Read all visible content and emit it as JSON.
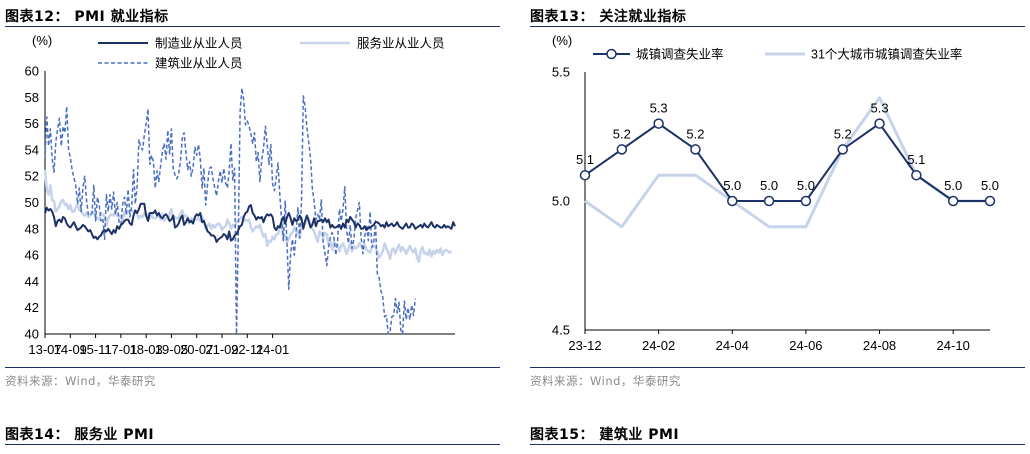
{
  "panels": {
    "p12": {
      "title": "图表12： PMI 就业指标",
      "source": "资料来源：Wind，华泰研究"
    },
    "p13": {
      "title": "图表13： 关注就业指标",
      "source": "资料来源：Wind，华泰研究"
    },
    "p14": {
      "title": "图表14： 服务业 PMI"
    },
    "p15": {
      "title": "图表15： 建筑业 PMI"
    }
  },
  "colors": {
    "navy": "#1c3166",
    "light": "#c7d3ea",
    "dashed": "#4a6fc0",
    "rule": "#1c3166"
  },
  "chart_data": [
    {
      "type": "line",
      "unit_label": "(%)",
      "ylim": [
        40,
        60
      ],
      "yticks": [
        40,
        42,
        44,
        46,
        48,
        50,
        52,
        54,
        56,
        58,
        60
      ],
      "x_start": "2013-07",
      "x_end": "2024-07",
      "xtick_labels": [
        "13-07",
        "14-09",
        "15-11",
        "17-01",
        "18-03",
        "19-05",
        "20-07",
        "21-09",
        "22-11",
        "24-01"
      ],
      "legend": "top",
      "series": [
        {
          "name": "制造业从业人员",
          "style": "solid",
          "values": [
            49.2,
            49.6,
            49.4,
            49.5,
            49.3,
            48.9,
            48.2,
            48.6,
            48.7,
            48.5,
            48.9,
            48.8,
            48.4,
            48.2,
            48.1,
            48.3,
            48.5,
            48.2,
            47.9,
            48.0,
            48.1,
            48.3,
            48.2,
            48.0,
            47.8,
            47.9,
            47.6,
            47.3,
            47.4,
            47.2,
            47.4,
            47.5,
            47.8,
            47.9,
            47.8,
            48.0,
            47.8,
            47.6,
            47.9,
            47.7,
            48.2,
            48.0,
            48.3,
            48.4,
            48.6,
            48.7,
            48.7,
            48.4,
            48.3,
            49.0,
            49.4,
            49.2,
            49.5,
            49.9,
            49.9,
            49.9,
            49.0,
            48.6,
            49.2,
            49.2,
            49.2,
            49.4,
            49.0,
            49.2,
            48.9,
            48.8,
            49.0,
            49.1,
            48.9,
            48.6,
            48.7,
            49.0,
            48.1,
            48.2,
            48.4,
            48.8,
            49.0,
            48.3,
            48.5,
            48.8,
            48.5,
            48.6,
            48.4,
            48.9,
            49.1,
            49.0,
            49.2,
            48.5,
            48.6,
            48.2,
            47.8,
            47.7,
            47.5,
            47.5,
            47.4,
            47.0,
            47.2,
            47.3,
            47.4,
            47.6,
            47.5,
            47.2,
            47.8,
            47.1,
            47.2,
            47.5,
            47.6,
            47.9,
            48.2,
            48.3,
            48.9,
            49.2,
            49.3,
            49.7,
            49.8,
            49.2,
            49.0,
            48.7,
            48.9,
            48.8,
            48.9,
            48.5,
            48.9,
            49.1,
            49.0,
            49.1,
            48.9,
            48.1,
            47.9,
            48.2,
            48.1,
            48.6,
            48.9,
            48.4,
            48.9,
            49.2,
            48.8,
            48.3,
            48.8,
            48.6,
            48.7,
            49.0,
            48.8,
            48.0,
            48.6,
            49.0,
            48.6,
            48.1,
            48.3,
            48.8,
            48.2,
            48.6,
            48.6,
            48.7,
            48.5,
            48.8,
            48.5,
            48.7,
            48.1,
            48.3,
            48.1,
            48.1,
            48.2,
            48.3,
            48.0,
            48.4,
            48.1,
            48.7,
            48.5,
            48.9,
            48.7,
            48.5,
            48.1,
            48.4,
            48.3,
            48.0,
            48.0,
            48.2,
            47.9,
            48.1,
            48.1,
            48.2,
            48.3,
            48.5,
            48.5,
            48.4,
            48.2,
            48.3,
            48.1,
            48.5,
            48.2,
            48.3,
            48.4,
            48.2,
            48.3,
            48.5,
            48.2,
            48.1,
            48.0,
            48.2,
            48.4,
            48.1,
            48.1,
            48.4,
            48.3,
            48.0,
            48.1,
            48.2,
            48.3,
            48.1,
            48.4,
            48.2,
            48.1,
            48.3,
            48.5,
            48.2,
            48.1,
            48.3,
            48.2,
            48.1,
            48.1,
            48.3,
            48.1,
            48.2,
            48.1,
            48.0,
            48.5,
            48.2
          ]
        },
        {
          "name": "服务业从业人员",
          "style": "solid",
          "values": [
            52.5,
            50.9,
            50.6,
            51.3,
            50.2,
            50.1,
            49.3,
            49.5,
            49.7,
            50.1,
            50.2,
            49.8,
            49.9,
            49.5,
            49.8,
            49.3,
            49.3,
            49.6,
            49.9,
            49.4,
            49.4,
            49.1,
            49.0,
            49.2,
            48.9,
            49.0,
            49.3,
            49.2,
            49.0,
            48.8,
            48.7,
            49.2,
            49.1,
            48.9,
            48.3,
            48.8,
            49.0,
            49.1,
            49.0,
            49.3,
            49.0,
            48.9,
            49.0,
            48.6,
            49.3,
            49.1,
            49.3,
            49.4,
            49.4,
            49.3,
            49.3,
            49.1,
            48.8,
            49.0,
            48.9,
            49.2,
            49.0,
            49.1,
            48.8,
            49.1,
            48.8,
            48.8,
            48.9,
            49.1,
            48.7,
            49.1,
            48.6,
            48.8,
            48.8,
            49.1,
            49.5,
            48.7,
            48.9,
            48.8,
            48.8,
            49.2,
            49.4,
            48.9,
            49.0,
            48.9,
            48.4,
            48.8,
            48.6,
            48.8,
            48.7,
            48.8,
            48.6,
            48.9,
            48.6,
            48.0,
            48.2,
            48.4,
            48.0,
            48.3,
            48.1,
            48.3,
            48.4,
            48.3,
            47.9,
            48.1,
            48.2,
            48.7,
            48.4,
            48.0,
            48.3,
            48.2,
            48.5,
            48.6,
            48.8,
            48.9,
            48.6,
            48.7,
            48.6,
            48.7,
            48.1,
            47.8,
            48.0,
            48.2,
            48.1,
            48.3,
            47.8,
            47.4,
            47.6,
            46.7,
            47.1,
            47.0,
            47.4,
            47.2,
            47.6,
            47.6,
            48.1,
            48.5,
            47.2,
            47.5,
            47.0,
            47.2,
            47.6,
            47.7,
            48.1,
            47.8,
            47.7,
            47.3,
            48.1,
            48.3,
            48.4,
            48.7,
            48.8,
            48.3,
            48.0,
            47.8,
            47.4,
            47.0,
            47.8,
            47.6,
            47.3,
            47.7,
            47.6,
            46.8,
            47.0,
            46.4,
            47.0,
            46.8,
            46.8,
            46.3,
            46.7,
            46.9,
            46.5,
            46.1,
            46.5,
            46.9,
            46.3,
            46.7,
            46.5,
            46.6,
            46.9,
            46.7,
            46.5,
            46.8,
            46.4,
            46.3,
            46.2,
            46.6,
            46.7,
            46.6,
            46.3,
            45.8,
            46.0,
            46.3,
            46.9,
            46.5,
            46.2,
            45.7,
            46.4,
            46.5,
            46.1,
            46.5,
            46.8,
            46.3,
            46.6,
            46.4,
            46.1,
            46.4,
            46.7,
            46.4,
            46.2,
            46.5,
            45.8,
            45.5,
            46.3,
            46.6,
            46.1,
            46.2,
            46.0,
            46.4,
            45.9,
            46.3,
            46.1,
            46.4,
            46.2,
            46.5,
            46.0,
            46.3,
            46.4,
            46.3,
            46.2,
            46.3
          ]
        },
        {
          "name": "建筑业从业人员",
          "style": "dashed",
          "values": [
            53.4,
            56.5,
            54.3,
            55.6,
            53.3,
            52.3,
            54.6,
            55.6,
            56.4,
            54.3,
            55.8,
            55.3,
            57.3,
            54.1,
            53.4,
            52.5,
            51.9,
            51.3,
            49.9,
            51.1,
            49.3,
            51.1,
            52.0,
            50.2,
            49.1,
            49.0,
            49.2,
            51.3,
            48.6,
            50.4,
            49.8,
            48.6,
            48.8,
            47.2,
            50.6,
            49.3,
            50.6,
            49.5,
            50.8,
            49.1,
            50.0,
            48.5,
            48.3,
            49.9,
            50.4,
            49.1,
            51.0,
            48.9,
            49.7,
            52.5,
            49.9,
            51.2,
            54.8,
            54.2,
            54.0,
            55.1,
            56.0,
            57.1,
            52.9,
            53.6,
            53.1,
            51.1,
            52.4,
            51.6,
            52.8,
            53.9,
            54.5,
            53.3,
            55.5,
            53.7,
            55.6,
            52.6,
            52.1,
            51.8,
            52.2,
            53.2,
            54.9,
            55.3,
            53.8,
            52.5,
            53.1,
            52.0,
            52.7,
            54.2,
            53.6,
            54.4,
            53.3,
            51.1,
            52.6,
            49.8,
            51.4,
            52.6,
            52.7,
            51.8,
            51.1,
            50.5,
            51.6,
            52.4,
            51.5,
            52.6,
            51.5,
            51.1,
            52.4,
            54.5,
            51.7,
            52.6,
            40.0,
            47.6,
            56.9,
            58.7,
            57.8,
            55.9,
            56.2,
            55.8,
            55.2,
            54.5,
            55.3,
            53.1,
            53.8,
            51.6,
            53.2,
            54.1,
            55.8,
            54.4,
            52.9,
            54.4,
            51.4,
            50.9,
            51.9,
            53.0,
            50.6,
            48.6,
            47.1,
            50.1,
            46.9,
            43.4,
            46.1,
            47.2,
            46.0,
            47.6,
            49.6,
            47.3,
            50.0,
            58.1,
            57.3,
            55.7,
            54.6,
            53.4,
            51.1,
            50.1,
            48.7,
            49.1,
            48.7,
            50.2,
            47.0,
            46.1,
            45.2,
            46.6,
            47.4,
            47.7,
            47.3,
            46.0,
            47.1,
            49.5,
            48.6,
            49.5,
            51.2,
            47.9,
            46.9,
            48.3,
            46.5,
            47.2,
            48.8,
            49.4,
            50.0,
            47.4,
            46.1,
            47.4,
            48.3,
            47.1,
            49.3,
            46.6,
            46.9,
            48.6,
            44.6,
            44.3,
            43.3,
            42.8,
            41.3,
            41.4,
            40.0,
            40.1,
            41.3,
            41.4,
            42.7,
            41.6,
            42.4,
            40.3,
            40.0,
            42.5,
            41.1,
            42.0,
            41.1,
            42.2,
            41.4,
            42.7
          ]
        }
      ]
    },
    {
      "type": "line",
      "unit_label": "(%)",
      "ylim": [
        4.5,
        5.5
      ],
      "yticks": [
        4.5,
        5.0,
        5.5
      ],
      "x": [
        "23-12",
        "24-01",
        "24-02",
        "24-03",
        "24-04",
        "24-05",
        "24-06",
        "24-07",
        "24-08",
        "24-09",
        "24-10",
        "24-11"
      ],
      "xtick_labels": [
        "23-12",
        "24-02",
        "24-04",
        "24-06",
        "24-08",
        "24-10"
      ],
      "legend": "top",
      "series": [
        {
          "name": "城镇调查失业率",
          "style": "solid-markers",
          "values": [
            5.1,
            5.2,
            5.3,
            5.2,
            5.0,
            5.0,
            5.0,
            5.2,
            5.3,
            5.1,
            5.0,
            5.0
          ]
        },
        {
          "name": "31个大城市城镇调查失业率",
          "style": "solid",
          "values": [
            5.0,
            4.9,
            5.1,
            5.1,
            5.0,
            4.9,
            4.9,
            5.2,
            5.4,
            5.1,
            5.0,
            5.0
          ]
        }
      ]
    }
  ]
}
